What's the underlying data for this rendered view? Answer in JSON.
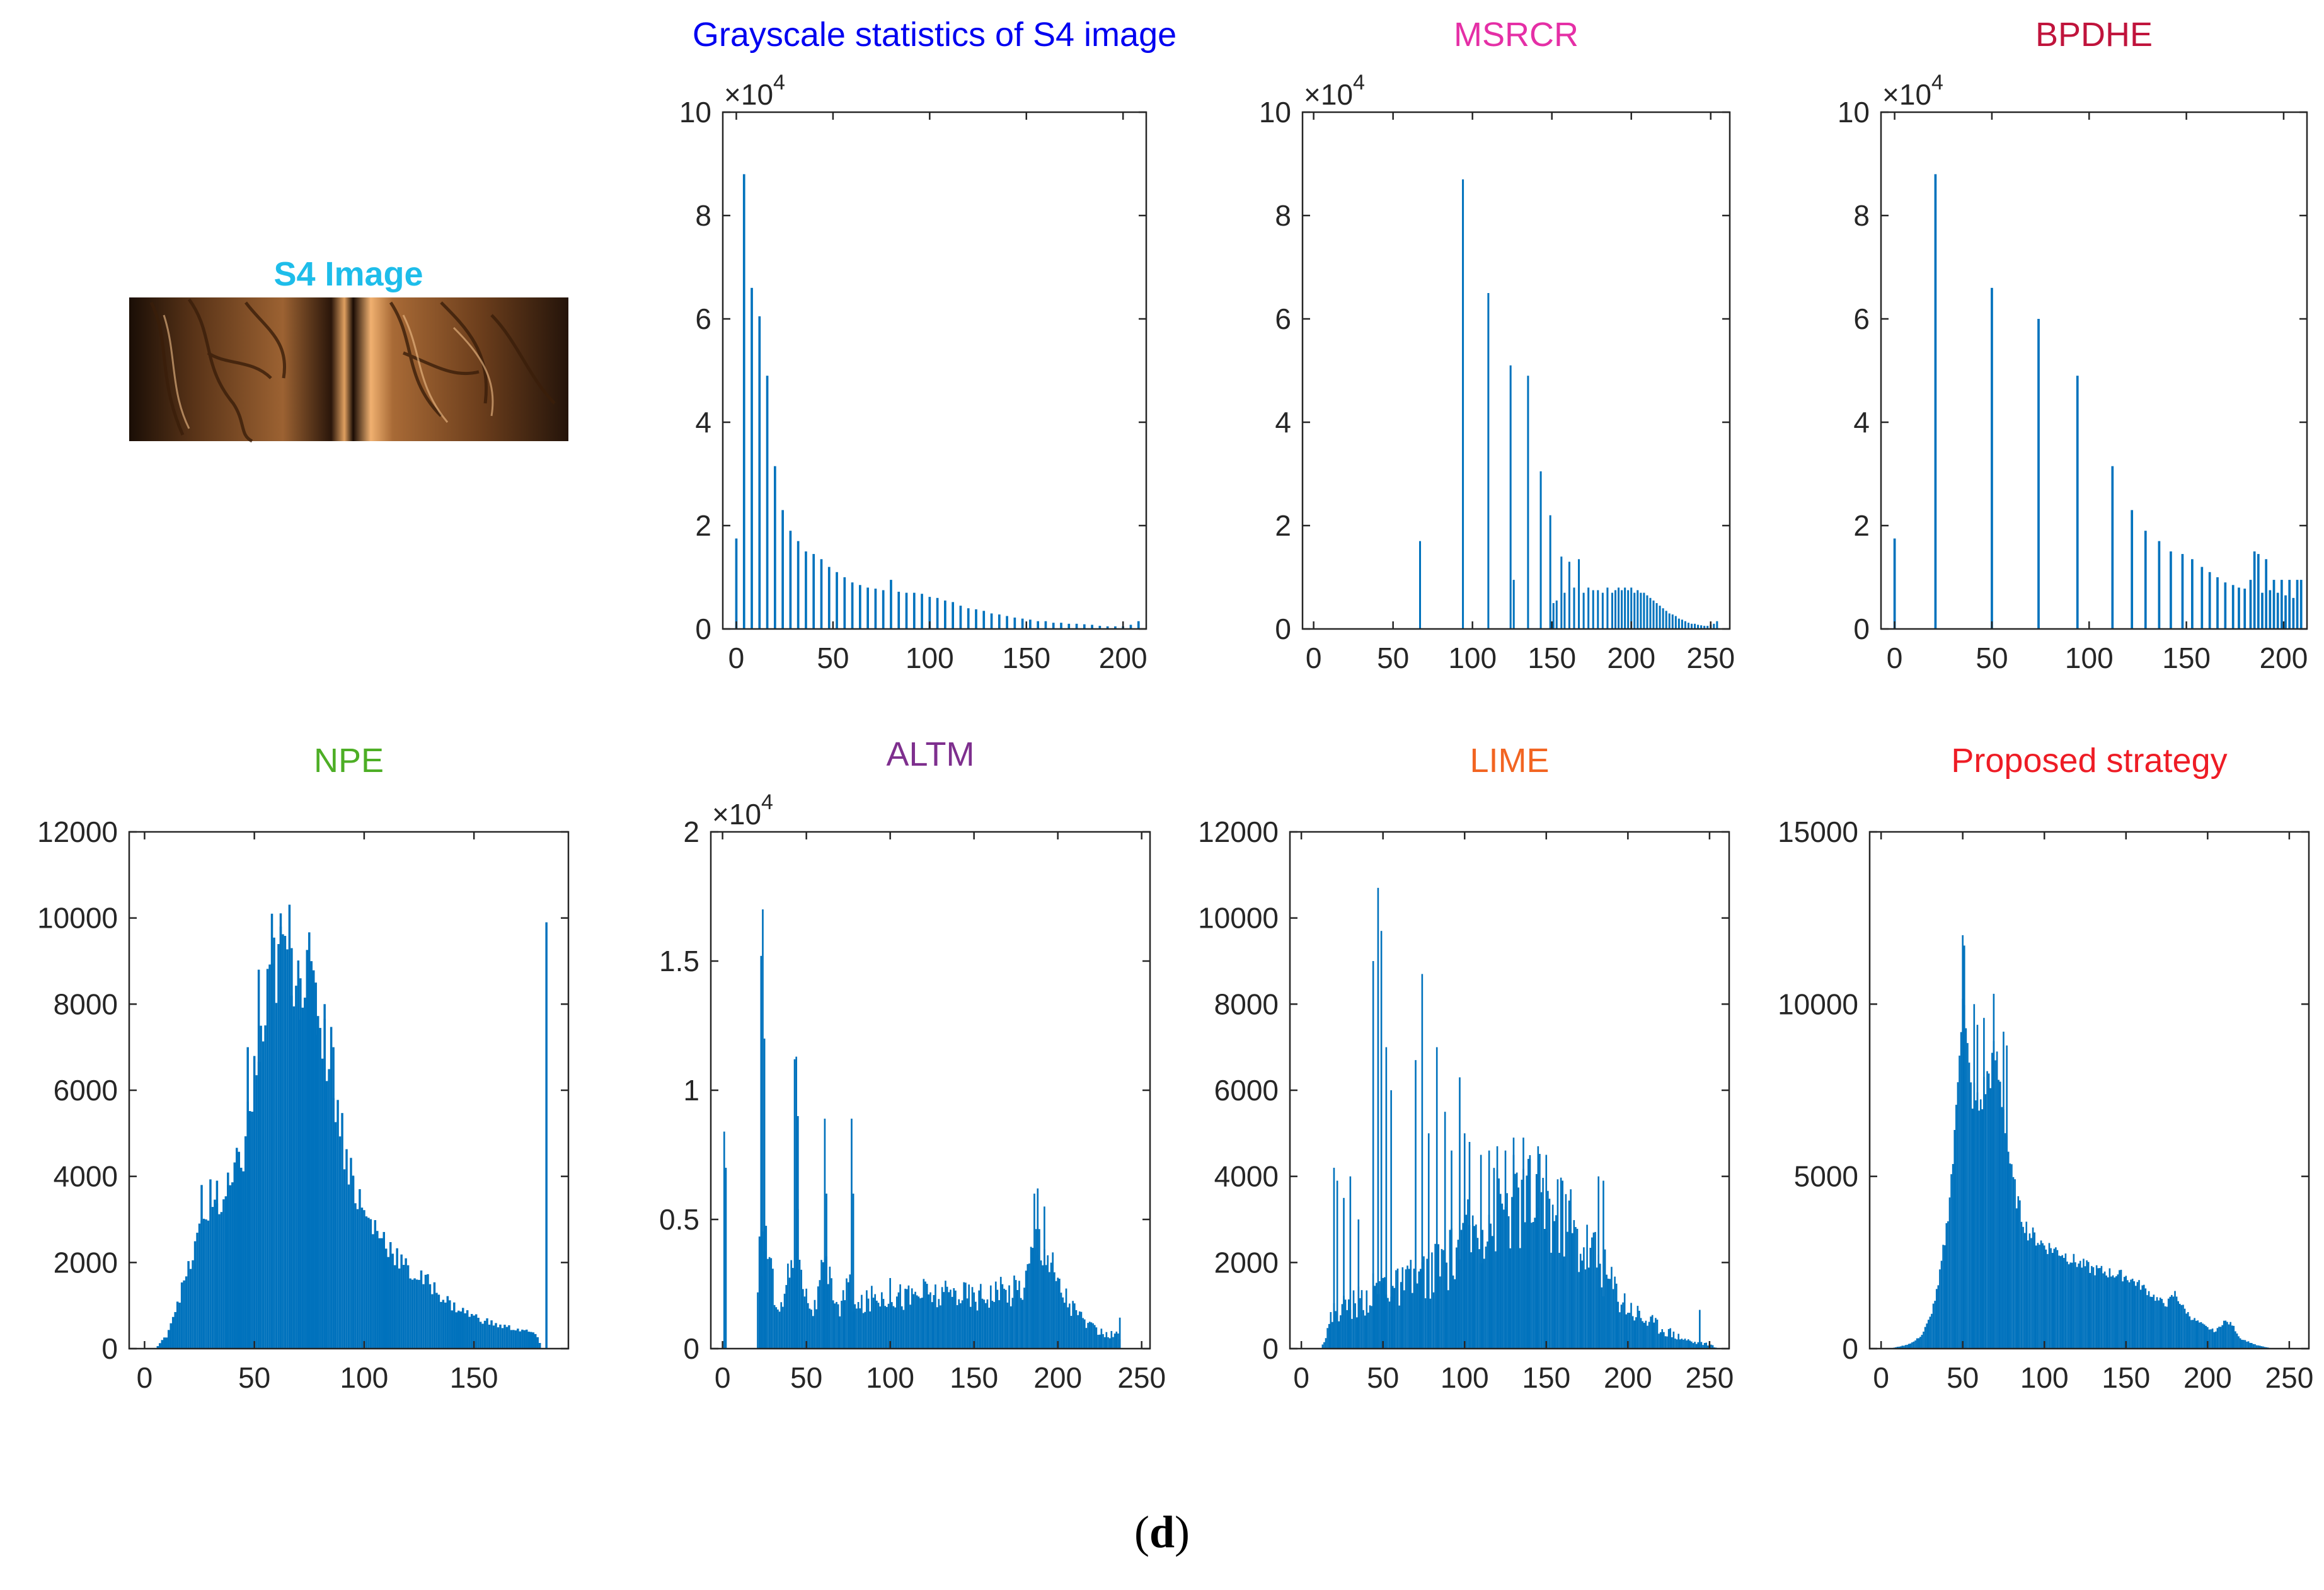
{
  "figure_label": {
    "open": "(",
    "letter": "d",
    "close": ")"
  },
  "image_panel": {
    "title": "S4 Image",
    "title_color": "#1EBDEA"
  },
  "bar_color": "#0072BD",
  "chart_data": [
    {
      "id": "p1",
      "type": "bar",
      "title": "Grayscale statistics of S4 image",
      "title_color": "#0000F0",
      "xlabel": "",
      "ylabel": "",
      "exponent": "4",
      "xlim": [
        -7,
        212
      ],
      "ylim": [
        0,
        10
      ],
      "xticks": [
        0,
        50,
        100,
        150,
        200
      ],
      "yticks": [
        0,
        2,
        4,
        6,
        8,
        10
      ],
      "x": [
        0,
        4,
        8,
        12,
        16,
        20,
        24,
        28,
        32,
        36,
        40,
        44,
        48,
        52,
        56,
        60,
        64,
        68,
        72,
        76,
        80,
        84,
        88,
        92,
        96,
        100,
        104,
        108,
        112,
        116,
        120,
        124,
        128,
        132,
        136,
        140,
        144,
        148,
        152,
        156,
        160,
        164,
        168,
        172,
        176,
        180,
        184,
        188,
        192,
        196,
        200,
        204,
        208
      ],
      "values": [
        1.75,
        8.8,
        6.6,
        6.05,
        4.9,
        3.15,
        2.3,
        1.9,
        1.7,
        1.5,
        1.45,
        1.35,
        1.2,
        1.1,
        1.0,
        0.9,
        0.85,
        0.8,
        0.78,
        0.75,
        0.95,
        0.72,
        0.7,
        0.7,
        0.68,
        0.62,
        0.6,
        0.55,
        0.52,
        0.45,
        0.4,
        0.38,
        0.35,
        0.3,
        0.28,
        0.25,
        0.22,
        0.2,
        0.18,
        0.15,
        0.15,
        0.12,
        0.12,
        0.1,
        0.1,
        0.09,
        0.08,
        0.06,
        0.05,
        0.05,
        0.05,
        0.08,
        0.15
      ],
      "bar_width": 1.2
    },
    {
      "id": "p2",
      "type": "bar",
      "title": "MSRCR",
      "title_color": "#E52FA6",
      "xlabel": "",
      "ylabel": "",
      "exponent": "4",
      "xlim": [
        -7,
        262
      ],
      "ylim": [
        0,
        10
      ],
      "xticks": [
        0,
        50,
        100,
        150,
        200,
        250
      ],
      "yticks": [
        0,
        2,
        4,
        6,
        8,
        10
      ],
      "x": [
        67,
        94,
        110,
        124,
        126,
        135,
        143,
        149,
        151,
        153,
        156,
        158,
        161,
        164,
        167,
        170,
        173,
        176,
        179,
        182,
        185,
        188,
        190,
        192,
        194,
        196,
        198,
        200,
        202,
        204,
        206,
        208,
        210,
        212,
        214,
        216,
        218,
        220,
        222,
        224,
        226,
        228,
        230,
        232,
        234,
        236,
        238,
        240,
        242,
        244,
        246,
        248,
        250,
        252,
        254
      ],
      "values": [
        1.7,
        8.7,
        6.5,
        5.1,
        0.95,
        4.9,
        3.05,
        2.2,
        0.5,
        0.55,
        1.4,
        0.7,
        1.3,
        0.8,
        1.35,
        0.7,
        0.8,
        0.75,
        0.75,
        0.7,
        0.8,
        0.7,
        0.75,
        0.8,
        0.75,
        0.8,
        0.75,
        0.8,
        0.7,
        0.75,
        0.7,
        0.7,
        0.65,
        0.6,
        0.55,
        0.5,
        0.45,
        0.4,
        0.35,
        0.3,
        0.28,
        0.25,
        0.2,
        0.18,
        0.15,
        0.12,
        0.1,
        0.1,
        0.08,
        0.07,
        0.06,
        0.06,
        0.08,
        0.1,
        0.15
      ],
      "bar_width": 1.2
    },
    {
      "id": "p3",
      "type": "bar",
      "title": "BPDHE",
      "title_color": "#C0143C",
      "xlabel": "",
      "ylabel": "",
      "exponent": "4",
      "xlim": [
        -7,
        212
      ],
      "ylim": [
        0,
        10
      ],
      "xticks": [
        0,
        50,
        100,
        150,
        200
      ],
      "yticks": [
        0,
        2,
        4,
        6,
        8,
        10
      ],
      "x": [
        0,
        21,
        50,
        74,
        94,
        112,
        122,
        129,
        136,
        142,
        148,
        153,
        158,
        162,
        166,
        170,
        174,
        177,
        180,
        183,
        185,
        187,
        189,
        191,
        193,
        195,
        197,
        199,
        201,
        203,
        205,
        207,
        209
      ],
      "values": [
        1.75,
        8.8,
        6.6,
        6.0,
        4.9,
        3.15,
        2.3,
        1.9,
        1.7,
        1.5,
        1.45,
        1.35,
        1.2,
        1.1,
        1.0,
        0.9,
        0.85,
        0.8,
        0.78,
        0.95,
        1.5,
        1.45,
        0.7,
        1.35,
        0.75,
        0.95,
        0.7,
        0.95,
        0.65,
        0.95,
        0.6,
        0.95,
        0.95
      ],
      "bar_width": 1.2
    },
    {
      "id": "p4",
      "type": "bar",
      "title": "NPE",
      "title_color": "#4DAE25",
      "xlabel": "",
      "ylabel": "",
      "exponent": "",
      "xlim": [
        -7,
        193
      ],
      "ylim": [
        0,
        12000
      ],
      "xticks": [
        0,
        50,
        100,
        150
      ],
      "yticks": [
        0,
        2000,
        4000,
        6000,
        8000,
        10000,
        12000
      ],
      "x": [],
      "values": [],
      "profile": [
        [
          5,
          0
        ],
        [
          10,
          300
        ],
        [
          15,
          1100
        ],
        [
          20,
          1800
        ],
        [
          25,
          2700
        ],
        [
          30,
          3500
        ],
        [
          35,
          3300
        ],
        [
          40,
          3800
        ],
        [
          45,
          4600
        ],
        [
          50,
          6200
        ],
        [
          55,
          7600
        ],
        [
          60,
          9000
        ],
        [
          65,
          9300
        ],
        [
          70,
          8900
        ],
        [
          75,
          8500
        ],
        [
          80,
          7700
        ],
        [
          85,
          6700
        ],
        [
          90,
          5000
        ],
        [
          95,
          3900
        ],
        [
          100,
          3100
        ],
        [
          110,
          2500
        ],
        [
          120,
          1800
        ],
        [
          130,
          1500
        ],
        [
          140,
          1000
        ],
        [
          150,
          750
        ],
        [
          160,
          550
        ],
        [
          170,
          450
        ],
        [
          178,
          350
        ],
        [
          181,
          0
        ]
      ],
      "jitter": 0.14,
      "spikes": [
        [
          183,
          9900
        ],
        [
          58,
          10100
        ],
        [
          62,
          9800
        ],
        [
          52,
          8800
        ],
        [
          67,
          9300
        ],
        [
          71,
          8600
        ],
        [
          75,
          8600
        ],
        [
          78,
          8500
        ],
        [
          82,
          8000
        ],
        [
          47,
          7000
        ],
        [
          86,
          7000
        ],
        [
          33,
          3900
        ],
        [
          38,
          3800
        ],
        [
          95,
          4000
        ],
        [
          26,
          3800
        ]
      ],
      "bar_width": 1
    },
    {
      "id": "p5",
      "type": "bar",
      "title": "ALTM",
      "title_color": "#7E2F8E",
      "xlabel": "",
      "ylabel": "",
      "exponent": "4",
      "xlim": [
        -7,
        255
      ],
      "ylim": [
        0,
        2
      ],
      "xticks": [
        0,
        50,
        100,
        150,
        200,
        250
      ],
      "yticks": [
        0,
        0.5,
        1,
        1.5,
        2
      ],
      "x": [],
      "values": [],
      "profile": [
        [
          20,
          0
        ],
        [
          22,
          0.35
        ],
        [
          26,
          0.45
        ],
        [
          30,
          0.25
        ],
        [
          35,
          0.15
        ],
        [
          40,
          0.3
        ],
        [
          45,
          0.45
        ],
        [
          50,
          0.2
        ],
        [
          55,
          0.15
        ],
        [
          60,
          0.3
        ],
        [
          65,
          0.25
        ],
        [
          70,
          0.15
        ],
        [
          75,
          0.25
        ],
        [
          80,
          0.15
        ],
        [
          90,
          0.2
        ],
        [
          100,
          0.22
        ],
        [
          110,
          0.2
        ],
        [
          120,
          0.22
        ],
        [
          130,
          0.2
        ],
        [
          140,
          0.22
        ],
        [
          150,
          0.2
        ],
        [
          160,
          0.22
        ],
        [
          170,
          0.22
        ],
        [
          180,
          0.25
        ],
        [
          186,
          0.4
        ],
        [
          190,
          0.45
        ],
        [
          195,
          0.35
        ],
        [
          200,
          0.25
        ],
        [
          210,
          0.15
        ],
        [
          220,
          0.08
        ],
        [
          230,
          0.05
        ],
        [
          236,
          0.06
        ],
        [
          238,
          0
        ]
      ],
      "jitter": 0.28,
      "spikes": [
        [
          1,
          0.84
        ],
        [
          2,
          0.7
        ],
        [
          23,
          1.52
        ],
        [
          24,
          1.7
        ],
        [
          25,
          1.2
        ],
        [
          43,
          1.12
        ],
        [
          44,
          1.13
        ],
        [
          45,
          0.9
        ],
        [
          61,
          0.89
        ],
        [
          62,
          0.6
        ],
        [
          77,
          0.89
        ],
        [
          78,
          0.6
        ],
        [
          186,
          0.6
        ],
        [
          188,
          0.62
        ],
        [
          192,
          0.55
        ],
        [
          237,
          0.12
        ]
      ],
      "bar_width": 1
    },
    {
      "id": "p6",
      "type": "bar",
      "title": "LIME",
      "title_color": "#F26522",
      "xlabel": "",
      "ylabel": "",
      "exponent": "",
      "xlim": [
        -7,
        262
      ],
      "ylim": [
        0,
        12000
      ],
      "xticks": [
        0,
        50,
        100,
        150,
        200,
        250
      ],
      "yticks": [
        0,
        2000,
        4000,
        6000,
        8000,
        10000,
        12000
      ],
      "x": [],
      "values": [],
      "profile": [
        [
          12,
          0
        ],
        [
          15,
          300
        ],
        [
          20,
          900
        ],
        [
          30,
          1000
        ],
        [
          40,
          1200
        ],
        [
          50,
          1500
        ],
        [
          60,
          1400
        ],
        [
          70,
          1600
        ],
        [
          80,
          1800
        ],
        [
          90,
          2000
        ],
        [
          100,
          2600
        ],
        [
          110,
          2900
        ],
        [
          120,
          3300
        ],
        [
          130,
          3400
        ],
        [
          140,
          3500
        ],
        [
          150,
          3300
        ],
        [
          160,
          3000
        ],
        [
          170,
          2500
        ],
        [
          180,
          2200
        ],
        [
          190,
          1500
        ],
        [
          200,
          1000
        ],
        [
          210,
          700
        ],
        [
          220,
          500
        ],
        [
          230,
          300
        ],
        [
          240,
          150
        ],
        [
          250,
          100
        ],
        [
          255,
          0
        ]
      ],
      "jitter": 0.35,
      "spikes": [
        [
          20,
          4200
        ],
        [
          22,
          3900
        ],
        [
          26,
          3500
        ],
        [
          30,
          4000
        ],
        [
          35,
          3000
        ],
        [
          44,
          9000
        ],
        [
          47,
          10700
        ],
        [
          49,
          9700
        ],
        [
          52,
          7000
        ],
        [
          55,
          6000
        ],
        [
          70,
          6700
        ],
        [
          74,
          8700
        ],
        [
          78,
          5000
        ],
        [
          83,
          7000
        ],
        [
          88,
          5500
        ],
        [
          92,
          4600
        ],
        [
          97,
          6300
        ],
        [
          100,
          5000
        ],
        [
          103,
          4800
        ],
        [
          110,
          4500
        ],
        [
          115,
          4600
        ],
        [
          120,
          4700
        ],
        [
          125,
          4600
        ],
        [
          130,
          4900
        ],
        [
          136,
          4900
        ],
        [
          140,
          4400
        ],
        [
          145,
          4700
        ],
        [
          150,
          4500
        ],
        [
          160,
          3900
        ],
        [
          165,
          3700
        ],
        [
          182,
          4000
        ],
        [
          185,
          3900
        ],
        [
          244,
          900
        ]
      ],
      "bar_width": 1
    },
    {
      "id": "p7",
      "type": "bar",
      "title": "Proposed strategy",
      "title_color": "#EE1C25",
      "xlabel": "",
      "ylabel": "",
      "exponent": "",
      "xlim": [
        -7,
        262
      ],
      "ylim": [
        0,
        15000
      ],
      "xticks": [
        0,
        50,
        100,
        150,
        200,
        250
      ],
      "yticks": [
        0,
        5000,
        10000,
        15000
      ],
      "x": [],
      "values": [],
      "profile": [
        [
          5,
          0
        ],
        [
          10,
          50
        ],
        [
          15,
          100
        ],
        [
          20,
          200
        ],
        [
          25,
          400
        ],
        [
          30,
          900
        ],
        [
          35,
          1800
        ],
        [
          40,
          3500
        ],
        [
          45,
          6000
        ],
        [
          48,
          9000
        ],
        [
          50,
          10500
        ],
        [
          52,
          9000
        ],
        [
          55,
          7500
        ],
        [
          60,
          7000
        ],
        [
          65,
          7800
        ],
        [
          70,
          8500
        ],
        [
          75,
          7000
        ],
        [
          80,
          5000
        ],
        [
          85,
          4000
        ],
        [
          90,
          3400
        ],
        [
          100,
          3000
        ],
        [
          110,
          2800
        ],
        [
          120,
          2500
        ],
        [
          130,
          2300
        ],
        [
          140,
          2200
        ],
        [
          150,
          2100
        ],
        [
          160,
          1800
        ],
        [
          170,
          1400
        ],
        [
          175,
          1300
        ],
        [
          180,
          1600
        ],
        [
          185,
          1200
        ],
        [
          190,
          900
        ],
        [
          200,
          600
        ],
        [
          205,
          500
        ],
        [
          210,
          800
        ],
        [
          215,
          700
        ],
        [
          220,
          300
        ],
        [
          230,
          100
        ],
        [
          240,
          0
        ]
      ],
      "jitter": 0.08,
      "spikes": [
        [
          50,
          12000
        ],
        [
          51,
          11700
        ],
        [
          57,
          10000
        ],
        [
          59,
          9400
        ],
        [
          63,
          9600
        ],
        [
          69,
          10300
        ],
        [
          75,
          9200
        ],
        [
          77,
          8800
        ]
      ],
      "bar_width": 1
    }
  ]
}
